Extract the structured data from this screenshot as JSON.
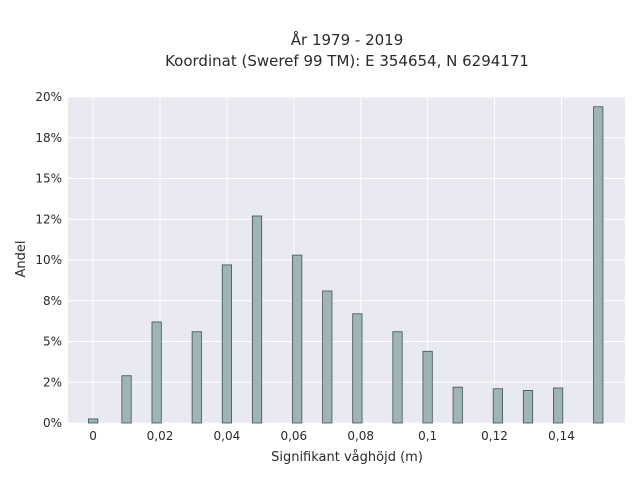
{
  "chart_data": {
    "type": "bar",
    "title_line1": "År 1979 - 2019",
    "title_line2": "Koordinat (Sweref 99 TM): E 354654, N 6294171",
    "xlabel": "Signifikant våghöjd (m)",
    "ylabel": "Andel",
    "x": [
      0,
      0.01,
      0.019,
      0.031,
      0.04,
      0.049,
      0.061,
      0.07,
      0.079,
      0.091,
      0.1,
      0.109,
      0.121,
      0.13,
      0.139,
      0.151
    ],
    "values": [
      0.25,
      2.9,
      6.2,
      5.6,
      9.7,
      12.7,
      10.3,
      8.1,
      6.7,
      5.6,
      4.4,
      2.2,
      2.1,
      2.0,
      2.15,
      19.4
    ],
    "xlim": [
      -0.0075,
      0.159
    ],
    "ylim": [
      0,
      20
    ],
    "x_ticks": [
      0,
      0.02,
      0.04,
      0.06,
      0.08,
      0.1,
      0.12,
      0.14
    ],
    "x_tick_labels": [
      "0",
      "0,02",
      "0,04",
      "0,06",
      "0,08",
      "0,1",
      "0,12",
      "0,14"
    ],
    "y_ticks": [
      0,
      2.5,
      5,
      7.5,
      10,
      12.5,
      15,
      17.5,
      20
    ],
    "y_tick_labels": [
      "0%",
      "2%",
      "5%",
      "8%",
      "10%",
      "12%",
      "15%",
      "18%",
      "20%"
    ],
    "grid": true,
    "colors": {
      "bar_fill": "#9fb5b5",
      "bar_stroke": "#3f5252",
      "plot_bg": "#e9e9f1",
      "grid": "#ffffff"
    }
  }
}
